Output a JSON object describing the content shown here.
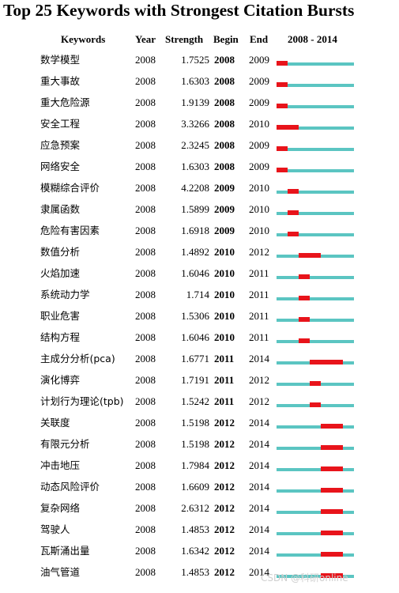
{
  "title": "Top 25 Keywords with Strongest Citation Bursts",
  "headers": {
    "keywords": "Keywords",
    "year": "Year",
    "strength": "Strength",
    "begin": "Begin",
    "end": "End",
    "range": "2008 - 2014"
  },
  "watermark": "CSDN @科研online",
  "colors": {
    "burst": "#e8141b",
    "baseline": "#5bc5c2"
  },
  "chart_data": {
    "type": "table",
    "range": [
      2008,
      2014
    ],
    "rows": [
      {
        "keyword": "数学模型",
        "year": "2008",
        "strength": "1.7525",
        "begin": "2008",
        "end": "2009"
      },
      {
        "keyword": "重大事故",
        "year": "2008",
        "strength": "1.6303",
        "begin": "2008",
        "end": "2009"
      },
      {
        "keyword": "重大危险源",
        "year": "2008",
        "strength": "1.9139",
        "begin": "2008",
        "end": "2009"
      },
      {
        "keyword": "安全工程",
        "year": "2008",
        "strength": "3.3266",
        "begin": "2008",
        "end": "2010"
      },
      {
        "keyword": "应急预案",
        "year": "2008",
        "strength": "2.3245",
        "begin": "2008",
        "end": "2009"
      },
      {
        "keyword": "网络安全",
        "year": "2008",
        "strength": "1.6303",
        "begin": "2008",
        "end": "2009"
      },
      {
        "keyword": "模糊综合评价",
        "year": "2008",
        "strength": "4.2208",
        "begin": "2009",
        "end": "2010"
      },
      {
        "keyword": "隶属函数",
        "year": "2008",
        "strength": "1.5899",
        "begin": "2009",
        "end": "2010"
      },
      {
        "keyword": "危险有害因素",
        "year": "2008",
        "strength": "1.6918",
        "begin": "2009",
        "end": "2010"
      },
      {
        "keyword": "数值分析",
        "year": "2008",
        "strength": "1.4892",
        "begin": "2010",
        "end": "2012"
      },
      {
        "keyword": "火焰加速",
        "year": "2008",
        "strength": "1.6046",
        "begin": "2010",
        "end": "2011"
      },
      {
        "keyword": "系统动力学",
        "year": "2008",
        "strength": "1.714",
        "begin": "2010",
        "end": "2011"
      },
      {
        "keyword": "职业危害",
        "year": "2008",
        "strength": "1.5306",
        "begin": "2010",
        "end": "2011"
      },
      {
        "keyword": "结构方程",
        "year": "2008",
        "strength": "1.6046",
        "begin": "2010",
        "end": "2011"
      },
      {
        "keyword": "主成分分析(pca)",
        "year": "2008",
        "strength": "1.6771",
        "begin": "2011",
        "end": "2014"
      },
      {
        "keyword": "演化博弈",
        "year": "2008",
        "strength": "1.7191",
        "begin": "2011",
        "end": "2012"
      },
      {
        "keyword": "计划行为理论(tpb)",
        "year": "2008",
        "strength": "1.5242",
        "begin": "2011",
        "end": "2012"
      },
      {
        "keyword": "关联度",
        "year": "2008",
        "strength": "1.5198",
        "begin": "2012",
        "end": "2014"
      },
      {
        "keyword": "有限元分析",
        "year": "2008",
        "strength": "1.5198",
        "begin": "2012",
        "end": "2014"
      },
      {
        "keyword": "冲击地压",
        "year": "2008",
        "strength": "1.7984",
        "begin": "2012",
        "end": "2014"
      },
      {
        "keyword": "动态风险评价",
        "year": "2008",
        "strength": "1.6609",
        "begin": "2012",
        "end": "2014"
      },
      {
        "keyword": "复杂网络",
        "year": "2008",
        "strength": "2.6312",
        "begin": "2012",
        "end": "2014"
      },
      {
        "keyword": "驾驶人",
        "year": "2008",
        "strength": "1.4853",
        "begin": "2012",
        "end": "2014"
      },
      {
        "keyword": "瓦斯涌出量",
        "year": "2008",
        "strength": "1.6342",
        "begin": "2012",
        "end": "2014"
      },
      {
        "keyword": "油气管道",
        "year": "2008",
        "strength": "1.4853",
        "begin": "2012",
        "end": "2014"
      }
    ]
  }
}
